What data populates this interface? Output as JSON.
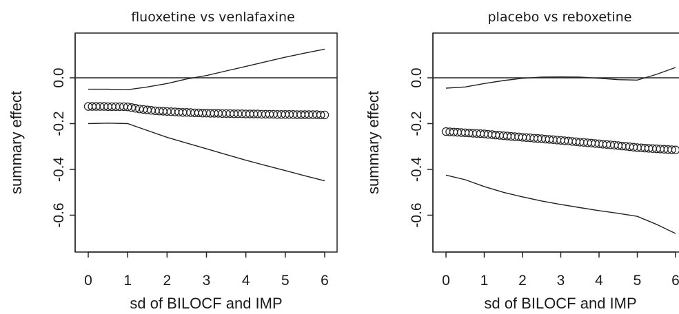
{
  "chart_data": [
    {
      "type": "line",
      "title": "fluoxetine vs venlafaxine",
      "xlabel": "sd of BILOCF and IMP",
      "ylabel": "summary effect",
      "xlim": [
        0,
        6
      ],
      "ylim": [
        -0.7,
        0.18
      ],
      "xticks": [
        "0",
        "1",
        "2",
        "3",
        "4",
        "5",
        "6"
      ],
      "yticks": [
        "0.0",
        "-0.2",
        "-0.4",
        "-0.6"
      ],
      "reference_line": 0.0,
      "series": [
        {
          "style": "points",
          "x": [
            0,
            0.1,
            0.2,
            0.3,
            0.4,
            0.5,
            0.6,
            0.7,
            0.8,
            0.9,
            1.0,
            1.1,
            1.2,
            1.3,
            1.4,
            1.5,
            1.6,
            1.7,
            1.8,
            1.9,
            2.0,
            2.1,
            2.2,
            2.3,
            2.4,
            2.5,
            2.6,
            2.7,
            2.8,
            2.9,
            3.0,
            3.1,
            3.2,
            3.3,
            3.4,
            3.5,
            3.6,
            3.7,
            3.8,
            3.9,
            4.0,
            4.1,
            4.2,
            4.3,
            4.4,
            4.5,
            4.6,
            4.7,
            4.8,
            4.9,
            5.0,
            5.1,
            5.2,
            5.3,
            5.4,
            5.5,
            5.6,
            5.7,
            5.8,
            5.9,
            6.0
          ],
          "y": [
            -0.125,
            -0.125,
            -0.125,
            -0.125,
            -0.125,
            -0.126,
            -0.126,
            -0.126,
            -0.126,
            -0.126,
            -0.127,
            -0.13,
            -0.133,
            -0.136,
            -0.138,
            -0.14,
            -0.142,
            -0.144,
            -0.145,
            -0.146,
            -0.147,
            -0.148,
            -0.149,
            -0.15,
            -0.151,
            -0.151,
            -0.152,
            -0.153,
            -0.153,
            -0.154,
            -0.154,
            -0.155,
            -0.155,
            -0.155,
            -0.156,
            -0.156,
            -0.156,
            -0.157,
            -0.157,
            -0.157,
            -0.158,
            -0.158,
            -0.158,
            -0.158,
            -0.159,
            -0.159,
            -0.159,
            -0.159,
            -0.16,
            -0.16,
            -0.16,
            -0.16,
            -0.16,
            -0.161,
            -0.161,
            -0.161,
            -0.161,
            -0.161,
            -0.161,
            -0.162,
            -0.162
          ]
        },
        {
          "style": "line",
          "x": [
            0,
            0.5,
            1.0,
            1.5,
            2.0,
            2.5,
            3.0,
            3.5,
            4.0,
            4.5,
            5.0,
            5.5,
            6.0
          ],
          "y": [
            -0.05,
            -0.05,
            -0.052,
            -0.04,
            -0.025,
            -0.005,
            0.01,
            0.03,
            0.05,
            0.07,
            0.09,
            0.108,
            0.125
          ]
        },
        {
          "style": "line",
          "x": [
            0,
            0.5,
            1.0,
            1.5,
            2.0,
            2.5,
            3.0,
            3.5,
            4.0,
            4.5,
            5.0,
            5.5,
            6.0
          ],
          "y": [
            -0.2,
            -0.198,
            -0.2,
            -0.23,
            -0.26,
            -0.285,
            -0.31,
            -0.335,
            -0.36,
            -0.383,
            -0.405,
            -0.428,
            -0.45
          ]
        }
      ]
    },
    {
      "type": "line",
      "title": "placebo vs reboxetine",
      "xlabel": "sd of BILOCF and IMP",
      "ylabel": "summary effect",
      "xlim": [
        0,
        6
      ],
      "ylim": [
        -0.7,
        0.18
      ],
      "xticks": [
        "0",
        "1",
        "2",
        "3",
        "4",
        "5",
        "6"
      ],
      "yticks": [
        "0.0",
        "-0.2",
        "-0.4",
        "-0.6"
      ],
      "reference_line": 0.0,
      "series": [
        {
          "style": "points",
          "x": [
            0,
            0.1,
            0.2,
            0.3,
            0.4,
            0.5,
            0.6,
            0.7,
            0.8,
            0.9,
            1.0,
            1.1,
            1.2,
            1.3,
            1.4,
            1.5,
            1.6,
            1.7,
            1.8,
            1.9,
            2.0,
            2.1,
            2.2,
            2.3,
            2.4,
            2.5,
            2.6,
            2.7,
            2.8,
            2.9,
            3.0,
            3.1,
            3.2,
            3.3,
            3.4,
            3.5,
            3.6,
            3.7,
            3.8,
            3.9,
            4.0,
            4.1,
            4.2,
            4.3,
            4.4,
            4.5,
            4.6,
            4.7,
            4.8,
            4.9,
            5.0,
            5.1,
            5.2,
            5.3,
            5.4,
            5.5,
            5.6,
            5.7,
            5.8,
            5.9,
            6.0
          ],
          "y": [
            -0.235,
            -0.236,
            -0.237,
            -0.238,
            -0.239,
            -0.24,
            -0.241,
            -0.242,
            -0.243,
            -0.244,
            -0.245,
            -0.247,
            -0.248,
            -0.25,
            -0.251,
            -0.253,
            -0.254,
            -0.256,
            -0.257,
            -0.258,
            -0.26,
            -0.261,
            -0.262,
            -0.264,
            -0.265,
            -0.266,
            -0.268,
            -0.269,
            -0.27,
            -0.272,
            -0.273,
            -0.275,
            -0.276,
            -0.278,
            -0.279,
            -0.281,
            -0.282,
            -0.284,
            -0.285,
            -0.287,
            -0.288,
            -0.29,
            -0.291,
            -0.293,
            -0.294,
            -0.296,
            -0.298,
            -0.299,
            -0.301,
            -0.303,
            -0.305,
            -0.306,
            -0.307,
            -0.308,
            -0.309,
            -0.31,
            -0.311,
            -0.312,
            -0.313,
            -0.314,
            -0.315
          ]
        },
        {
          "style": "line",
          "x": [
            0,
            0.5,
            1.0,
            1.5,
            2.0,
            2.5,
            3.0,
            3.5,
            4.0,
            4.5,
            5.0,
            5.5,
            6.0
          ],
          "y": [
            -0.045,
            -0.04,
            -0.025,
            -0.012,
            -0.002,
            0.003,
            0.004,
            0.003,
            -0.002,
            -0.008,
            -0.01,
            0.015,
            0.045
          ]
        },
        {
          "style": "line",
          "x": [
            0,
            0.5,
            1.0,
            1.5,
            2.0,
            2.5,
            3.0,
            3.5,
            4.0,
            4.5,
            5.0,
            5.5,
            6.0
          ],
          "y": [
            -0.425,
            -0.445,
            -0.475,
            -0.5,
            -0.52,
            -0.538,
            -0.553,
            -0.567,
            -0.58,
            -0.592,
            -0.605,
            -0.64,
            -0.68
          ]
        }
      ]
    }
  ]
}
